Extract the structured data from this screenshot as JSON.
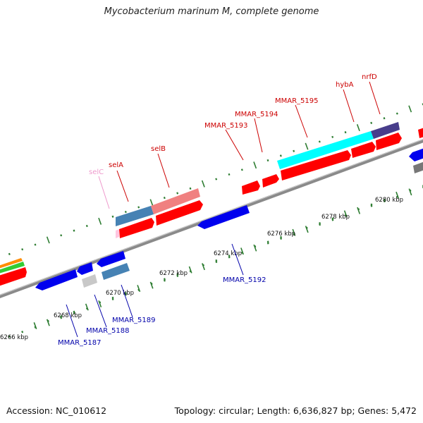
{
  "title": "Mycobacterium marinum M, complete genome",
  "footer": {
    "accession": "Accession: NC_010612",
    "summary": "Topology: circular; Length: 6,636,827 bp; Genes: 5,472"
  },
  "colors": {
    "backbone": "#8a8a8a",
    "tick": "#2e7d32",
    "label_forward": "#cc0000",
    "label_reverse": "#0000aa",
    "label_pale": "#ee99cc"
  },
  "ticks": {
    "outer_labels": [
      "6266 kbp",
      "6268 kbp",
      "6270 kbp",
      "6272 kbp",
      "6274 kbp",
      "6276 kbp",
      "6278 kbp",
      "6280 kbp"
    ]
  },
  "genes_forward": [
    {
      "name": "selC",
      "color": "#ee99cc"
    },
    {
      "name": "selA",
      "color": "#cc0000"
    },
    {
      "name": "selB",
      "color": "#cc0000"
    },
    {
      "name": "MMAR_5193",
      "color": "#cc0000"
    },
    {
      "name": "MMAR_5194",
      "color": "#cc0000"
    },
    {
      "name": "MMAR_5195",
      "color": "#cc0000"
    },
    {
      "name": "hybA",
      "color": "#cc0000"
    },
    {
      "name": "nrfD",
      "color": "#cc0000"
    }
  ],
  "genes_reverse": [
    {
      "name": "MMAR_5187",
      "color": "#0000aa"
    },
    {
      "name": "MMAR_5188",
      "color": "#0000aa"
    },
    {
      "name": "MMAR_5189",
      "color": "#0000aa"
    },
    {
      "name": "MMAR_5192",
      "color": "#0000aa"
    }
  ]
}
